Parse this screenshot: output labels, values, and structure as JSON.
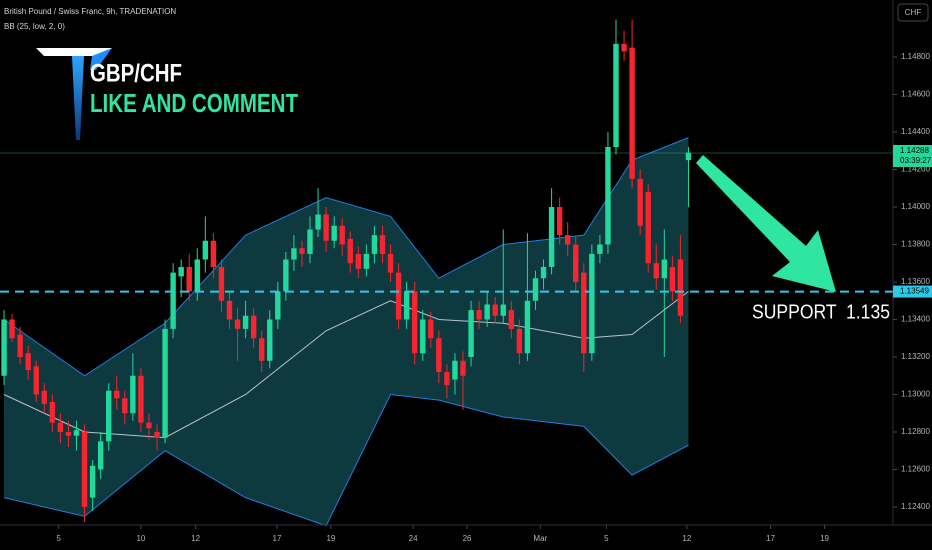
{
  "chart_data": {
    "type": "candlestick",
    "title": "British Pound / Swiss Franc, 9h, TRADENATION",
    "headline": "GBP/CHF",
    "subheadline": "LIKE AND COMMENT",
    "annotation": "SUPPORT  1.135",
    "currency": "CHF",
    "up_color": "#22d89c",
    "down_color": "#f7252f",
    "ohlc": [
      [
        1.131,
        1.1345,
        1.1305,
        1.134
      ],
      [
        1.134,
        1.1343,
        1.1328,
        1.133
      ],
      [
        1.1332,
        1.1336,
        1.1316,
        1.132
      ],
      [
        1.1322,
        1.1326,
        1.1308,
        1.1313
      ],
      [
        1.1315,
        1.1318,
        1.1296,
        1.13
      ],
      [
        1.1302,
        1.1306,
        1.129,
        1.1295
      ],
      [
        1.1296,
        1.13,
        1.128,
        1.1285
      ],
      [
        1.1285,
        1.129,
        1.1274,
        1.128
      ],
      [
        1.128,
        1.1286,
        1.1272,
        1.1278
      ],
      [
        1.1278,
        1.1286,
        1.127,
        1.1281
      ],
      [
        1.128,
        1.1284,
        1.1232,
        1.124
      ],
      [
        1.1245,
        1.1265,
        1.1238,
        1.1262
      ],
      [
        1.126,
        1.128,
        1.1255,
        1.1275
      ],
      [
        1.1275,
        1.1306,
        1.127,
        1.1302
      ],
      [
        1.1302,
        1.131,
        1.1292,
        1.1298
      ],
      [
        1.1298,
        1.1302,
        1.1284,
        1.129
      ],
      [
        1.129,
        1.1322,
        1.1286,
        1.131
      ],
      [
        1.131,
        1.1314,
        1.128,
        1.1285
      ],
      [
        1.1285,
        1.129,
        1.1276,
        1.1282
      ],
      [
        1.128,
        1.1284,
        1.127,
        1.1277
      ],
      [
        1.1277,
        1.134,
        1.1274,
        1.1335
      ],
      [
        1.1335,
        1.137,
        1.133,
        1.1365
      ],
      [
        1.1363,
        1.1372,
        1.1352,
        1.1368
      ],
      [
        1.1368,
        1.1375,
        1.135,
        1.1355
      ],
      [
        1.1355,
        1.1378,
        1.135,
        1.1372
      ],
      [
        1.1372,
        1.1395,
        1.1365,
        1.1382
      ],
      [
        1.1382,
        1.1386,
        1.1362,
        1.1368
      ],
      [
        1.1368,
        1.1372,
        1.1344,
        1.135
      ],
      [
        1.135,
        1.1355,
        1.1335,
        1.134
      ],
      [
        1.134,
        1.1346,
        1.1318,
        1.1335
      ],
      [
        1.1335,
        1.135,
        1.133,
        1.1342
      ],
      [
        1.1342,
        1.1346,
        1.1325,
        1.133
      ],
      [
        1.133,
        1.1334,
        1.1312,
        1.1318
      ],
      [
        1.1318,
        1.1345,
        1.1314,
        1.134
      ],
      [
        1.134,
        1.136,
        1.1335,
        1.1355
      ],
      [
        1.1355,
        1.1376,
        1.135,
        1.1372
      ],
      [
        1.1372,
        1.1385,
        1.1366,
        1.1378
      ],
      [
        1.1378,
        1.1382,
        1.1368,
        1.1375
      ],
      [
        1.1375,
        1.1395,
        1.137,
        1.1388
      ],
      [
        1.1388,
        1.141,
        1.1384,
        1.1396
      ],
      [
        1.1396,
        1.14,
        1.1376,
        1.1382
      ],
      [
        1.1382,
        1.1395,
        1.1378,
        1.139
      ],
      [
        1.139,
        1.1394,
        1.1374,
        1.138
      ],
      [
        1.1383,
        1.1387,
        1.1365,
        1.137
      ],
      [
        1.1375,
        1.1379,
        1.1362,
        1.1367
      ],
      [
        1.1367,
        1.138,
        1.1363,
        1.1375
      ],
      [
        1.1375,
        1.139,
        1.137,
        1.1385
      ],
      [
        1.1385,
        1.139,
        1.137,
        1.1375
      ],
      [
        1.1375,
        1.138,
        1.136,
        1.1365
      ],
      [
        1.1365,
        1.137,
        1.1335,
        1.134
      ],
      [
        1.134,
        1.136,
        1.1335,
        1.1355
      ],
      [
        1.1355,
        1.136,
        1.1316,
        1.1322
      ],
      [
        1.1322,
        1.1345,
        1.1318,
        1.134
      ],
      [
        1.134,
        1.1344,
        1.1325,
        1.133
      ],
      [
        1.133,
        1.1334,
        1.1306,
        1.1312
      ],
      [
        1.1312,
        1.1316,
        1.1298,
        1.1305
      ],
      [
        1.1308,
        1.1322,
        1.13,
        1.1318
      ],
      [
        1.1318,
        1.1323,
        1.1292,
        1.131
      ],
      [
        1.132,
        1.135,
        1.1315,
        1.1345
      ],
      [
        1.1345,
        1.135,
        1.1335,
        1.134
      ],
      [
        1.134,
        1.1355,
        1.1336,
        1.1348
      ],
      [
        1.1348,
        1.1352,
        1.1338,
        1.1342
      ],
      [
        1.1342,
        1.1388,
        1.1338,
        1.1348
      ],
      [
        1.1345,
        1.135,
        1.133,
        1.1335
      ],
      [
        1.1335,
        1.134,
        1.1316,
        1.1322
      ],
      [
        1.1322,
        1.1386,
        1.1318,
        1.135
      ],
      [
        1.135,
        1.1366,
        1.1345,
        1.1362
      ],
      [
        1.1362,
        1.1372,
        1.1356,
        1.1368
      ],
      [
        1.1368,
        1.141,
        1.1364,
        1.14
      ],
      [
        1.14,
        1.1405,
        1.138,
        1.1385
      ],
      [
        1.1385,
        1.1392,
        1.1374,
        1.138
      ],
      [
        1.138,
        1.1384,
        1.1355,
        1.136
      ],
      [
        1.1365,
        1.137,
        1.1312,
        1.1322
      ],
      [
        1.1322,
        1.138,
        1.1318,
        1.1375
      ],
      [
        1.1375,
        1.1385,
        1.137,
        1.138
      ],
      [
        1.138,
        1.144,
        1.1375,
        1.1432
      ],
      [
        1.1432,
        1.15,
        1.1428,
        1.1487
      ],
      [
        1.1487,
        1.1494,
        1.1478,
        1.1483
      ],
      [
        1.1485,
        1.15,
        1.141,
        1.1415
      ],
      [
        1.1415,
        1.142,
        1.1385,
        1.139
      ],
      [
        1.1408,
        1.1412,
        1.1365,
        1.137
      ],
      [
        1.137,
        1.138,
        1.1356,
        1.1362
      ],
      [
        1.1362,
        1.1388,
        1.132,
        1.1372
      ],
      [
        1.1368,
        1.1374,
        1.135,
        1.1355
      ],
      [
        1.1372,
        1.1385,
        1.1338,
        1.1342
      ],
      [
        1.1425,
        1.1432,
        1.14,
        1.1429
      ]
    ],
    "indicator": {
      "label": "BB (25, low, 2, 0)",
      "x": [
        0,
        10,
        20,
        30,
        40,
        48,
        54,
        62,
        72,
        78,
        85
      ],
      "upper": [
        1.134,
        1.131,
        1.1338,
        1.1385,
        1.1405,
        1.1395,
        1.1362,
        1.138,
        1.1385,
        1.1425,
        1.1437
      ],
      "basis": [
        1.13,
        1.128,
        1.1277,
        1.13,
        1.1334,
        1.135,
        1.134,
        1.1338,
        1.133,
        1.1332,
        1.1355
      ],
      "lower": [
        1.1245,
        1.1235,
        1.127,
        1.1245,
        1.123,
        1.13,
        1.1297,
        1.1288,
        1.1283,
        1.1257,
        1.1273
      ],
      "band_color": "#1f7fe0",
      "fill_color": "#0f3f45",
      "basis_color": "#b8c4c8"
    },
    "last_price": 1.14288,
    "countdown": "03:39:27",
    "support_price": 1.13549,
    "xlim": [
      -0.5,
      110.4
    ],
    "ylim": [
      1.12304,
      1.15104
    ],
    "xticks": [
      {
        "value": 6.8,
        "label": "5"
      },
      {
        "value": 17.0,
        "label": "10"
      },
      {
        "value": 23.8,
        "label": "12"
      },
      {
        "value": 33.9,
        "label": "17"
      },
      {
        "value": 40.6,
        "label": "19"
      },
      {
        "value": 50.8,
        "label": "24"
      },
      {
        "value": 57.5,
        "label": "26"
      },
      {
        "value": 66.6,
        "label": "Mar"
      },
      {
        "value": 74.8,
        "label": "5"
      },
      {
        "value": 84.8,
        "label": "12"
      },
      {
        "value": 95.2,
        "label": "17"
      },
      {
        "value": 101.9,
        "label": "19"
      }
    ],
    "yticks": [
      {
        "value": 1.124,
        "label": "1.12400"
      },
      {
        "value": 1.126,
        "label": "1.12600"
      },
      {
        "value": 1.128,
        "label": "1.12800"
      },
      {
        "value": 1.13,
        "label": "1.13000"
      },
      {
        "value": 1.132,
        "label": "1.13200"
      },
      {
        "value": 1.134,
        "label": "1.13400"
      },
      {
        "value": 1.136,
        "label": "1.13600"
      },
      {
        "value": 1.138,
        "label": "1.13800"
      },
      {
        "value": 1.14,
        "label": "1.14000"
      },
      {
        "value": 1.142,
        "label": "1.14200"
      },
      {
        "value": 1.144,
        "label": "1.14400"
      },
      {
        "value": 1.146,
        "label": "1.14600"
      },
      {
        "value": 1.148,
        "label": "1.14800"
      }
    ]
  }
}
